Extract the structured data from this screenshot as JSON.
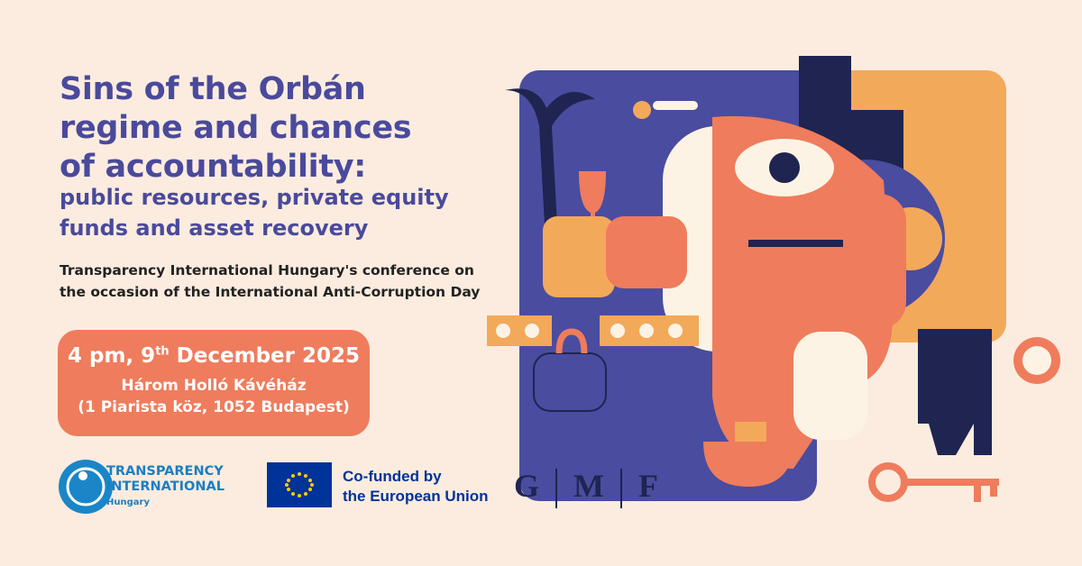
{
  "header": {
    "title_lines": [
      "Sins of the Orbán",
      "regime and chances",
      "of accountability:"
    ],
    "subtitle_lines": [
      "public resources, private equity",
      "funds and asset recovery"
    ],
    "description_lines": [
      "Transparency International Hungary's conference on",
      "the occasion of the International Anti-Corruption Day"
    ]
  },
  "event": {
    "date_start": "4 pm, 9",
    "date_sup": "th",
    "date_end": " December 2025",
    "venue": "Három Holló Kávéház",
    "address": "(1 Piarista köz, 1052 Budapest)"
  },
  "logos": {
    "ti": [
      "TRANSPARENCY",
      "INTERNATIONAL",
      "Hungary"
    ],
    "eu": [
      "Co-funded by",
      "the European Union"
    ],
    "gmf": [
      "G",
      "M",
      "F"
    ]
  }
}
